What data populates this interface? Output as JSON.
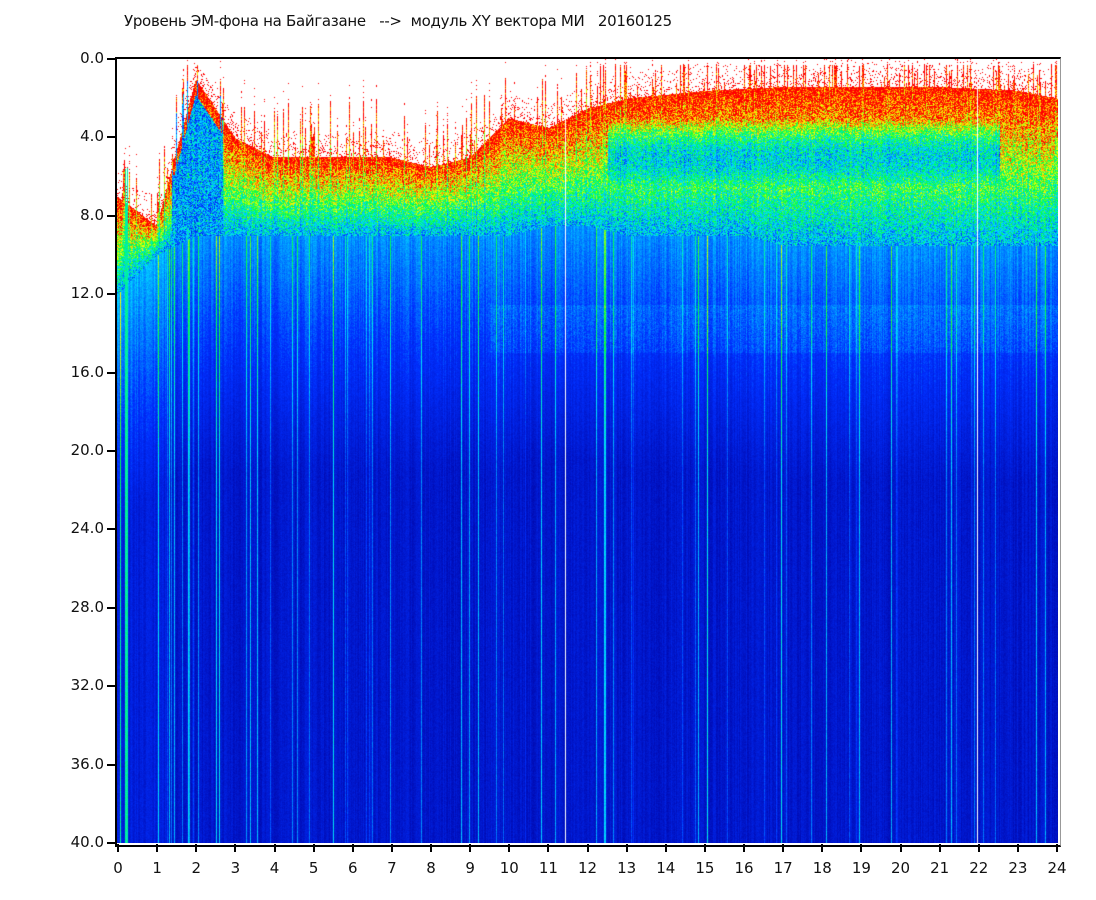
{
  "title": "Уровень ЭМ-фона на Байгазане   -->  модуль XY вектора МИ   20160125",
  "chart_data": {
    "type": "heatmap",
    "title": "Уровень ЭМ-фона на Байгазане   -->  модуль XY вектора МИ   20160125",
    "xlabel": "",
    "ylabel": "",
    "xlim": [
      0,
      24
    ],
    "ylim": [
      40,
      0
    ],
    "y_inverted": true,
    "x_ticks": [
      "0",
      "1",
      "2",
      "3",
      "4",
      "5",
      "6",
      "7",
      "8",
      "9",
      "10",
      "11",
      "12",
      "13",
      "14",
      "15",
      "16",
      "17",
      "18",
      "19",
      "20",
      "21",
      "22",
      "23",
      "24"
    ],
    "y_ticks": [
      "0.0",
      "4.0",
      "8.0",
      "12.0",
      "16.0",
      "20.0",
      "24.0",
      "28.0",
      "32.0",
      "36.0",
      "40.0"
    ],
    "hours": [
      0,
      1,
      2,
      3,
      4,
      5,
      6,
      7,
      8,
      9,
      10,
      11,
      12,
      13,
      14,
      15,
      16,
      17,
      18,
      19,
      20,
      21,
      22,
      23,
      24
    ],
    "signal_top_level": [
      7,
      8.5,
      1,
      4,
      5,
      5,
      5,
      5,
      5.5,
      5,
      3,
      3.5,
      2.5,
      2,
      1.8,
      1.6,
      1.5,
      1.4,
      1.4,
      1.4,
      1.4,
      1.4,
      1.5,
      1.6,
      2
    ],
    "blue_transition_level": [
      12,
      10,
      9,
      9,
      9,
      9,
      9,
      9,
      9,
      9,
      9,
      8.5,
      8.5,
      9,
      9,
      9,
      9,
      9.5,
      9.5,
      9.5,
      9.5,
      9.5,
      9.5,
      9.5,
      9.5
    ],
    "data_gaps_hours": [
      11.43,
      21.93
    ],
    "colormap": [
      "#00009c",
      "#0030ff",
      "#00e0ff",
      "#00ff40",
      "#ffff00",
      "#ff0000"
    ],
    "background": "#ffffff",
    "grid": false
  }
}
